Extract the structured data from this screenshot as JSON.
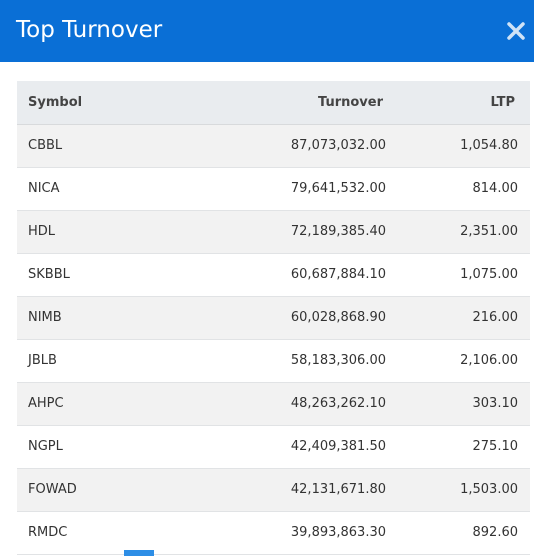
{
  "modal": {
    "title": "Top Turnover",
    "close_icon": "close-icon"
  },
  "colors": {
    "header_bg": "#0a6fd6",
    "header_text": "#ffffff",
    "row_alt": "#f2f2f2",
    "table_header_bg": "#e9ecef"
  },
  "table": {
    "headers": {
      "symbol": "Symbol",
      "turnover": "Turnover",
      "ltp": "LTP"
    },
    "rows": [
      {
        "symbol": "CBBL",
        "turnover": "87,073,032.00",
        "ltp": "1,054.80"
      },
      {
        "symbol": "NICA",
        "turnover": "79,641,532.00",
        "ltp": "814.00"
      },
      {
        "symbol": "HDL",
        "turnover": "72,189,385.40",
        "ltp": "2,351.00"
      },
      {
        "symbol": "SKBBL",
        "turnover": "60,687,884.10",
        "ltp": "1,075.00"
      },
      {
        "symbol": "NIMB",
        "turnover": "60,028,868.90",
        "ltp": "216.00"
      },
      {
        "symbol": "JBLB",
        "turnover": "58,183,306.00",
        "ltp": "2,106.00"
      },
      {
        "symbol": "AHPC",
        "turnover": "48,263,262.10",
        "ltp": "303.10"
      },
      {
        "symbol": "NGPL",
        "turnover": "42,409,381.50",
        "ltp": "275.10"
      },
      {
        "symbol": "FOWAD",
        "turnover": "42,131,671.80",
        "ltp": "1,503.00"
      },
      {
        "symbol": "RMDC",
        "turnover": "39,893,863.30",
        "ltp": "892.60"
      }
    ]
  }
}
